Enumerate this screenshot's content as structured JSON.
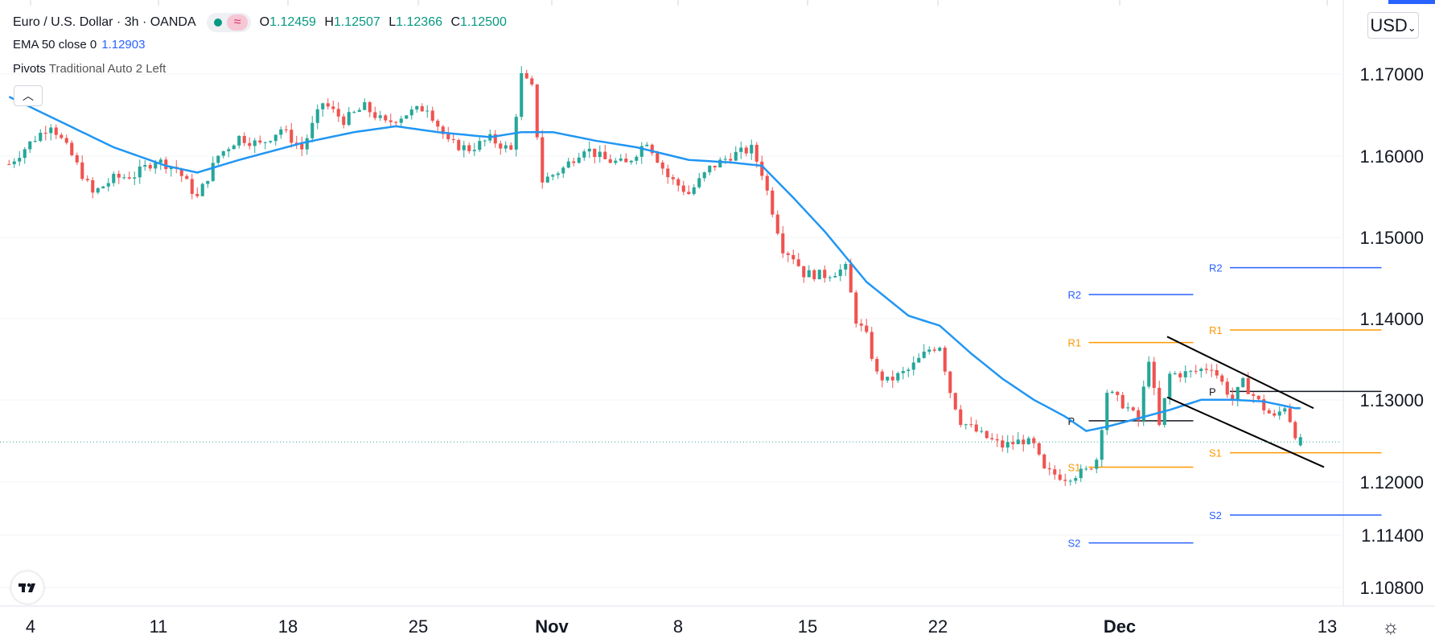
{
  "legend": {
    "symbol": "Euro / U.S. Dollar · 3h · OANDA",
    "open_label": "O",
    "open": "1.12459",
    "high_label": "H",
    "high": "1.12507",
    "low_label": "L",
    "low": "1.12366",
    "close_label": "C",
    "close": "1.12500",
    "ema_label": "EMA 50 close 0",
    "ema_value": "1.12903",
    "pivots_label": "Pivots",
    "pivots_settings": "Traditional Auto 2 Left"
  },
  "currency": "USD",
  "colors": {
    "up": "#26a69a",
    "down": "#ef5350",
    "ema": "#2196f3",
    "r_pivot": "#ff9800",
    "s_pivot_near": "#ff9800",
    "far_pivot": "#2962ff"
  },
  "chart_data": {
    "type": "candlestick",
    "title": "Euro / U.S. Dollar · 3h · OANDA",
    "timeframe": "3h",
    "ylim": [
      1.1055,
      1.1775
    ],
    "y_ticks": [
      "1.17000",
      "1.16000",
      "1.15000",
      "1.14000",
      "1.13000",
      "1.12000",
      "1.11400",
      "1.10800"
    ],
    "x_ticks": [
      {
        "label": "4",
        "bold": false
      },
      {
        "label": "11",
        "bold": false
      },
      {
        "label": "18",
        "bold": false
      },
      {
        "label": "25",
        "bold": false
      },
      {
        "label": "Nov",
        "bold": true
      },
      {
        "label": "8",
        "bold": false
      },
      {
        "label": "15",
        "bold": false
      },
      {
        "label": "22",
        "bold": false
      },
      {
        "label": "Dec",
        "bold": true
      },
      {
        "label": "13",
        "bold": false
      }
    ],
    "price_path": [
      [
        0,
        1.158
      ],
      [
        4,
        1.1605
      ],
      [
        8,
        1.1628
      ],
      [
        12,
        1.159
      ],
      [
        16,
        1.1545
      ],
      [
        20,
        1.1563
      ],
      [
        24,
        1.1567
      ],
      [
        28,
        1.1585
      ],
      [
        32,
        1.1575
      ],
      [
        36,
        1.154
      ],
      [
        40,
        1.159
      ],
      [
        44,
        1.1612
      ],
      [
        48,
        1.1603
      ],
      [
        52,
        1.1622
      ],
      [
        56,
        1.1598
      ],
      [
        60,
        1.1653
      ],
      [
        64,
        1.1632
      ],
      [
        68,
        1.1648
      ],
      [
        72,
        1.1628
      ],
      [
        76,
        1.164
      ],
      [
        80,
        1.1648
      ],
      [
        84,
        1.1605
      ],
      [
        88,
        1.1598
      ],
      [
        92,
        1.161
      ],
      [
        96,
        1.1596
      ],
      [
        98,
        1.1685
      ],
      [
        100,
        1.167
      ],
      [
        102,
        1.156
      ],
      [
        106,
        1.1575
      ],
      [
        110,
        1.16
      ],
      [
        114,
        1.1585
      ],
      [
        118,
        1.158
      ],
      [
        122,
        1.1608
      ],
      [
        126,
        1.1565
      ],
      [
        130,
        1.1545
      ],
      [
        134,
        1.1575
      ],
      [
        138,
        1.159
      ],
      [
        142,
        1.1598
      ],
      [
        144,
        1.157
      ],
      [
        146,
        1.1525
      ],
      [
        148,
        1.148
      ],
      [
        150,
        1.147
      ],
      [
        152,
        1.145
      ],
      [
        156,
        1.1448
      ],
      [
        160,
        1.1456
      ],
      [
        162,
        1.1395
      ],
      [
        164,
        1.1375
      ],
      [
        166,
        1.133
      ],
      [
        168,
        1.1322
      ],
      [
        172,
        1.1335
      ],
      [
        176,
        1.136
      ],
      [
        178,
        1.1365
      ],
      [
        180,
        1.131
      ],
      [
        182,
        1.1275
      ],
      [
        186,
        1.1258
      ],
      [
        190,
        1.1245
      ],
      [
        194,
        1.1252
      ],
      [
        196,
        1.1245
      ],
      [
        198,
        1.1215
      ],
      [
        202,
        1.1208
      ],
      [
        206,
        1.1215
      ],
      [
        208,
        1.123
      ],
      [
        210,
        1.131
      ],
      [
        214,
        1.129
      ],
      [
        216,
        1.1275
      ],
      [
        218,
        1.135
      ],
      [
        220,
        1.1268
      ],
      [
        222,
        1.133
      ],
      [
        226,
        1.1332
      ],
      [
        230,
        1.134
      ],
      [
        234,
        1.13
      ],
      [
        236,
        1.132
      ],
      [
        238,
        1.1305
      ],
      [
        240,
        1.129
      ],
      [
        242,
        1.1278
      ],
      [
        244,
        1.1293
      ],
      [
        246,
        1.126
      ],
      [
        247,
        1.125
      ]
    ],
    "ema_path": [
      [
        0,
        1.166
      ],
      [
        10,
        1.163
      ],
      [
        20,
        1.16
      ],
      [
        30,
        1.1578
      ],
      [
        36,
        1.157
      ],
      [
        44,
        1.1585
      ],
      [
        56,
        1.1605
      ],
      [
        66,
        1.1618
      ],
      [
        74,
        1.1625
      ],
      [
        82,
        1.1618
      ],
      [
        92,
        1.1612
      ],
      [
        98,
        1.1618
      ],
      [
        104,
        1.1618
      ],
      [
        112,
        1.1608
      ],
      [
        120,
        1.16
      ],
      [
        130,
        1.1585
      ],
      [
        138,
        1.1582
      ],
      [
        144,
        1.1578
      ],
      [
        150,
        1.154
      ],
      [
        156,
        1.15
      ],
      [
        164,
        1.144
      ],
      [
        172,
        1.14
      ],
      [
        178,
        1.1388
      ],
      [
        184,
        1.1355
      ],
      [
        190,
        1.1325
      ],
      [
        196,
        1.13
      ],
      [
        202,
        1.128
      ],
      [
        206,
        1.1263
      ],
      [
        210,
        1.1268
      ],
      [
        216,
        1.1278
      ],
      [
        222,
        1.1288
      ],
      [
        228,
        1.13
      ],
      [
        234,
        1.13
      ],
      [
        240,
        1.1298
      ],
      [
        246,
        1.129
      ]
    ],
    "current_price": 1.125,
    "pivots": [
      {
        "label": "R2",
        "value": 1.1425,
        "x_start": 207,
        "x_end": 227,
        "group": "far"
      },
      {
        "label": "R1",
        "value": 1.1368,
        "x_start": 207,
        "x_end": 227,
        "group": "near"
      },
      {
        "label": "P",
        "value": 1.1275,
        "x_start": 207,
        "x_end": 227,
        "group": "pivot"
      },
      {
        "label": "S1",
        "value": 1.122,
        "x_start": 207,
        "x_end": 227,
        "group": "near"
      },
      {
        "label": "S2",
        "value": 1.113,
        "x_start": 207,
        "x_end": 227,
        "group": "far"
      },
      {
        "label": "R2",
        "value": 1.1457,
        "x_start": 234,
        "x_end": 263,
        "group": "far"
      },
      {
        "label": "R1",
        "value": 1.1383,
        "x_start": 234,
        "x_end": 263,
        "group": "near"
      },
      {
        "label": "P",
        "value": 1.131,
        "x_start": 234,
        "x_end": 263,
        "group": "pivot"
      },
      {
        "label": "S1",
        "value": 1.1237,
        "x_start": 234,
        "x_end": 263,
        "group": "near"
      },
      {
        "label": "S2",
        "value": 1.1163,
        "x_start": 234,
        "x_end": 263,
        "group": "far"
      }
    ],
    "channel_lines": [
      {
        "x1": 222,
        "y1": 1.1375,
        "x2": 250,
        "y2": 1.129
      },
      {
        "x1": 222,
        "y1": 1.1303,
        "x2": 252,
        "y2": 1.122
      }
    ]
  }
}
